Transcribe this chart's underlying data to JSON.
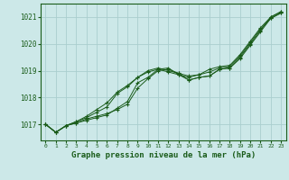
{
  "bg_color": "#cce8e8",
  "grid_color": "#aacece",
  "line_color": "#1a5c1a",
  "marker_color": "#1a5c1a",
  "xlabel": "Graphe pression niveau de la mer (hPa)",
  "xlabel_fontsize": 6.5,
  "xlim": [
    -0.5,
    23.5
  ],
  "ylim": [
    1016.4,
    1021.5
  ],
  "yticks": [
    1017,
    1018,
    1019,
    1020,
    1021
  ],
  "xticks": [
    0,
    1,
    2,
    3,
    4,
    5,
    6,
    7,
    8,
    9,
    10,
    11,
    12,
    13,
    14,
    15,
    16,
    17,
    18,
    19,
    20,
    21,
    22,
    23
  ],
  "series": [
    [
      1017.0,
      1016.7,
      1016.95,
      1017.05,
      1017.15,
      1017.25,
      1017.35,
      1017.6,
      1017.85,
      1018.55,
      1018.75,
      1019.05,
      1019.1,
      1018.85,
      1018.65,
      1018.75,
      1018.8,
      1019.05,
      1019.1,
      1019.45,
      1019.95,
      1020.45,
      1020.95,
      1021.15
    ],
    [
      1017.0,
      1016.7,
      1016.95,
      1017.1,
      1017.25,
      1017.45,
      1017.65,
      1018.15,
      1018.4,
      1018.75,
      1018.95,
      1019.05,
      1018.95,
      1018.85,
      1018.75,
      1018.85,
      1018.95,
      1019.1,
      1019.15,
      1019.55,
      1020.05,
      1020.55,
      1020.95,
      1021.15
    ],
    [
      1017.0,
      1016.7,
      1016.95,
      1017.1,
      1017.3,
      1017.55,
      1017.8,
      1018.2,
      1018.45,
      1018.75,
      1019.0,
      1019.1,
      1019.0,
      1018.9,
      1018.8,
      1018.85,
      1019.05,
      1019.15,
      1019.2,
      1019.6,
      1020.1,
      1020.6,
      1021.0,
      1021.2
    ],
    [
      1017.0,
      1016.7,
      1016.95,
      1017.05,
      1017.2,
      1017.3,
      1017.4,
      1017.55,
      1017.75,
      1018.35,
      1018.7,
      1019.0,
      1019.05,
      1018.9,
      1018.65,
      1018.75,
      1018.8,
      1019.05,
      1019.1,
      1019.5,
      1020.0,
      1020.5,
      1021.0,
      1021.2
    ]
  ]
}
